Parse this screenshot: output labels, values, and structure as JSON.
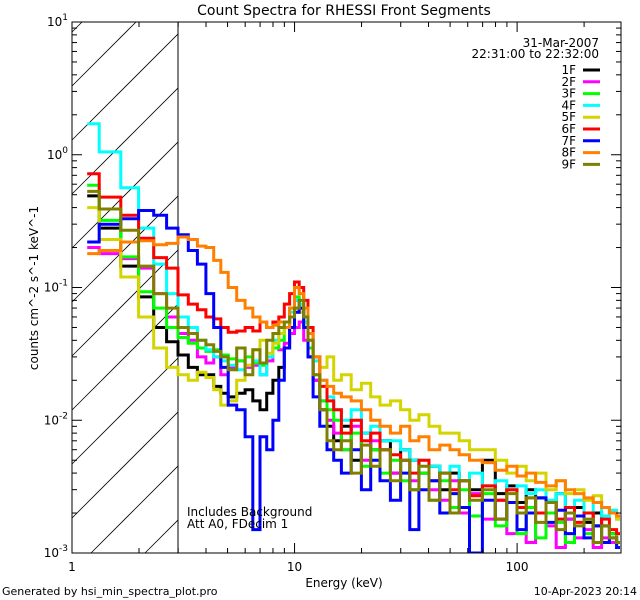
{
  "chart_data": {
    "type": "line",
    "title": "Count Spectra for RHESSI Front Segments",
    "xlabel": "Energy (keV)",
    "ylabel": "counts cm^-2 s^-1 keV^-1",
    "xscale": "log",
    "yscale": "log",
    "xlim": [
      1,
      293
    ],
    "ylim": [
      0.001,
      10
    ],
    "x_ticks": [
      {
        "value": 1,
        "label": "1"
      },
      {
        "value": 10,
        "label": "10"
      },
      {
        "value": 100,
        "label": "100"
      }
    ],
    "y_ticks": [
      {
        "value": 10,
        "base": "10",
        "exp": "1"
      },
      {
        "value": 1,
        "base": "10",
        "exp": "0"
      },
      {
        "value": 0.1,
        "base": "10",
        "exp": "-1"
      },
      {
        "value": 0.01,
        "base": "10",
        "exp": "-2"
      },
      {
        "value": 0.001,
        "base": "10",
        "exp": "-3"
      }
    ],
    "hatched_region_keV": [
      1,
      3
    ],
    "date": "31-Mar-2007",
    "time_range": "22:31:00 to 22:32:00",
    "annotations": [
      "Includes Background",
      "Att A0, FDecim 1"
    ],
    "legend_placement": "top-right",
    "energy_keV": [
      1.17,
      1.5,
      1.83,
      2.17,
      2.5,
      2.83,
      3.17,
      3.5,
      3.83,
      4.17,
      4.5,
      4.83,
      5.25,
      5.75,
      6.25,
      6.75,
      7.25,
      7.75,
      8.25,
      8.75,
      9.25,
      9.75,
      10.25,
      10.75,
      11.25,
      11.75,
      12.5,
      13.5,
      14.5,
      15.5,
      17,
      19,
      21,
      23,
      25.5,
      28.5,
      31.5,
      34.5,
      38,
      42.5,
      47.5,
      52.5,
      57.5,
      65,
      75,
      85,
      95,
      105,
      115,
      127.5,
      142.5,
      157.5,
      172.5,
      190,
      210,
      230,
      250,
      270,
      290
    ],
    "series": [
      {
        "name": "1F",
        "color": "#000000",
        "values": [
          0.49,
          0.28,
          0.145,
          0.085,
          0.05,
          0.039,
          0.031,
          0.025,
          0.022,
          0.022,
          0.018,
          0.016,
          0.015,
          0.016,
          0.017,
          0.014,
          0.012,
          0.016,
          0.02,
          0.025,
          0.035,
          0.06,
          0.08,
          0.07,
          0.05,
          0.03,
          0.02,
          0.012,
          0.009,
          0.007,
          0.009,
          0.005,
          0.008,
          0.006,
          0.007,
          0.004,
          0.006,
          0.005,
          0.004,
          0.0045,
          0.003,
          0.004,
          0.0035,
          0.003,
          0.005,
          0.0028,
          0.0032,
          0.0024,
          0.003,
          0.0026,
          0.002,
          0.0028,
          0.0018,
          0.0022,
          0.0017,
          0.002,
          0.0016,
          0.0014,
          0.0012
        ]
      },
      {
        "name": "2F",
        "color": "#ff00ff",
        "values": [
          0.2,
          0.18,
          0.165,
          0.14,
          0.09,
          0.06,
          0.045,
          0.04,
          0.03,
          0.027,
          0.03,
          0.022,
          0.025,
          0.028,
          0.025,
          0.026,
          0.022,
          0.028,
          0.035,
          0.034,
          0.038,
          0.045,
          0.05,
          0.055,
          0.04,
          0.03,
          0.02,
          0.014,
          0.01,
          0.008,
          0.006,
          0.009,
          0.005,
          0.007,
          0.006,
          0.004,
          0.005,
          0.0035,
          0.004,
          0.003,
          0.0025,
          0.0035,
          0.002,
          0.0028,
          0.0018,
          0.0025,
          0.0014,
          0.0022,
          0.0012,
          0.002,
          0.0016,
          0.0011,
          0.0018,
          0.0013,
          0.0015,
          0.0011,
          0.0013,
          0.0012,
          0.0011
        ]
      },
      {
        "name": "3F",
        "color": "#00ff00",
        "values": [
          0.59,
          0.32,
          0.17,
          0.093,
          0.07,
          0.05,
          0.042,
          0.038,
          0.035,
          0.033,
          0.034,
          0.031,
          0.029,
          0.028,
          0.03,
          0.027,
          0.026,
          0.03,
          0.035,
          0.04,
          0.05,
          0.07,
          0.085,
          0.07,
          0.05,
          0.035,
          0.022,
          0.014,
          0.012,
          0.01,
          0.006,
          0.008,
          0.0045,
          0.006,
          0.004,
          0.005,
          0.0035,
          0.003,
          0.004,
          0.0025,
          0.0035,
          0.0022,
          0.003,
          0.0019,
          0.0028,
          0.0016,
          0.0024,
          0.0014,
          0.0022,
          0.0013,
          0.002,
          0.0017,
          0.0012,
          0.0019,
          0.0014,
          0.0016,
          0.0012,
          0.0014,
          0.0011
        ]
      },
      {
        "name": "4F",
        "color": "#00ffff",
        "values": [
          1.71,
          1.05,
          0.565,
          0.28,
          0.15,
          0.09,
          0.06,
          0.05,
          0.04,
          0.034,
          0.03,
          0.028,
          0.026,
          0.024,
          0.026,
          0.028,
          0.022,
          0.03,
          0.04,
          0.045,
          0.05,
          0.065,
          0.08,
          0.075,
          0.055,
          0.04,
          0.028,
          0.02,
          0.015,
          0.012,
          0.01,
          0.012,
          0.008,
          0.009,
          0.007,
          0.007,
          0.006,
          0.005,
          0.005,
          0.0045,
          0.004,
          0.0045,
          0.0035,
          0.004,
          0.0032,
          0.0035,
          0.003,
          0.0032,
          0.0028,
          0.003,
          0.0025,
          0.0028,
          0.0022,
          0.0025,
          0.002,
          0.0024,
          0.0019,
          0.0021,
          0.0018
        ]
      },
      {
        "name": "5F",
        "color": "#d4d400",
        "values": [
          0.4,
          0.23,
          0.12,
          0.06,
          0.035,
          0.025,
          0.022,
          0.02,
          0.023,
          0.021,
          0.017,
          0.013,
          0.014,
          0.02,
          0.026,
          0.034,
          0.04,
          0.032,
          0.038,
          0.045,
          0.05,
          0.06,
          0.07,
          0.065,
          0.05,
          0.04,
          0.03,
          0.025,
          0.03,
          0.02,
          0.022,
          0.017,
          0.019,
          0.015,
          0.013,
          0.014,
          0.012,
          0.01,
          0.011,
          0.009,
          0.008,
          0.008,
          0.007,
          0.006,
          0.006,
          0.005,
          0.004,
          0.0045,
          0.0035,
          0.004,
          0.003,
          0.0035,
          0.0028,
          0.003,
          0.0025,
          0.0027,
          0.0022,
          0.002,
          0.0018
        ]
      },
      {
        "name": "6F",
        "color": "#ff0000",
        "values": [
          0.72,
          0.48,
          0.35,
          0.235,
          0.168,
          0.14,
          0.088,
          0.075,
          0.068,
          0.06,
          0.058,
          0.05,
          0.046,
          0.047,
          0.05,
          0.047,
          0.055,
          0.05,
          0.055,
          0.06,
          0.075,
          0.09,
          0.11,
          0.1,
          0.08,
          0.05,
          0.03,
          0.018,
          0.014,
          0.012,
          0.008,
          0.01,
          0.007,
          0.008,
          0.006,
          0.0055,
          0.005,
          0.004,
          0.005,
          0.0035,
          0.004,
          0.003,
          0.0035,
          0.0027,
          0.0032,
          0.0025,
          0.003,
          0.0022,
          0.0026,
          0.002,
          0.0024,
          0.0018,
          0.0022,
          0.0017,
          0.002,
          0.0016,
          0.0018,
          0.0015,
          0.0014
        ]
      },
      {
        "name": "7F",
        "color": "#0000ff",
        "values": [
          0.22,
          0.3,
          0.33,
          0.38,
          0.35,
          0.28,
          0.25,
          0.19,
          0.15,
          0.09,
          0.05,
          0.025,
          0.013,
          0.012,
          0.0075,
          0.0015,
          0.0075,
          0.006,
          0.01,
          0.02,
          0.035,
          0.05,
          0.065,
          0.07,
          0.05,
          0.03,
          0.015,
          0.009,
          0.006,
          0.005,
          0.004,
          0.006,
          0.003,
          0.005,
          0.0035,
          0.0025,
          0.004,
          0.0015,
          0.003,
          0.0035,
          0.002,
          0.0028,
          0.0022,
          0.001,
          0.0025,
          0.0018,
          0.0024,
          0.0015,
          0.002,
          0.0026,
          0.0017,
          0.0021,
          0.0014,
          0.0019,
          0.0013,
          0.0016,
          0.0012,
          0.0013,
          0.0011
        ]
      },
      {
        "name": "8F",
        "color": "#ff8000",
        "values": [
          0.18,
          0.19,
          0.22,
          0.225,
          0.21,
          0.215,
          0.24,
          0.23,
          0.205,
          0.2,
          0.16,
          0.13,
          0.1,
          0.08,
          0.07,
          0.06,
          0.055,
          0.05,
          0.052,
          0.055,
          0.05,
          0.07,
          0.1,
          0.09,
          0.07,
          0.045,
          0.03,
          0.02,
          0.018,
          0.016,
          0.015,
          0.014,
          0.012,
          0.01,
          0.009,
          0.008,
          0.009,
          0.007,
          0.0075,
          0.006,
          0.0065,
          0.006,
          0.0055,
          0.005,
          0.0048,
          0.0042,
          0.0045,
          0.0038,
          0.004,
          0.0034,
          0.0032,
          0.0035,
          0.003,
          0.0028,
          0.0026,
          0.0024,
          0.0022,
          0.002,
          0.0019
        ]
      },
      {
        "name": "9F",
        "color": "#808000",
        "values": [
          0.53,
          0.39,
          0.27,
          0.145,
          0.09,
          0.07,
          0.05,
          0.045,
          0.04,
          0.037,
          0.033,
          0.03,
          0.024,
          0.035,
          0.022,
          0.034,
          0.027,
          0.04,
          0.045,
          0.05,
          0.055,
          0.06,
          0.07,
          0.08,
          0.06,
          0.04,
          0.022,
          0.012,
          0.007,
          0.006,
          0.007,
          0.004,
          0.0065,
          0.0045,
          0.006,
          0.0035,
          0.005,
          0.003,
          0.0045,
          0.0025,
          0.004,
          0.002,
          0.0035,
          0.0025,
          0.003,
          0.0018,
          0.0028,
          0.002,
          0.0026,
          0.0017,
          0.0024,
          0.0015,
          0.002,
          0.0016,
          0.0018,
          0.0012,
          0.0016,
          0.0013,
          0.0012
        ]
      }
    ]
  },
  "footer": {
    "generated_by": "Generated by hsi_min_spectra_plot.pro",
    "timestamp": "10-Apr-2023 20:14"
  }
}
